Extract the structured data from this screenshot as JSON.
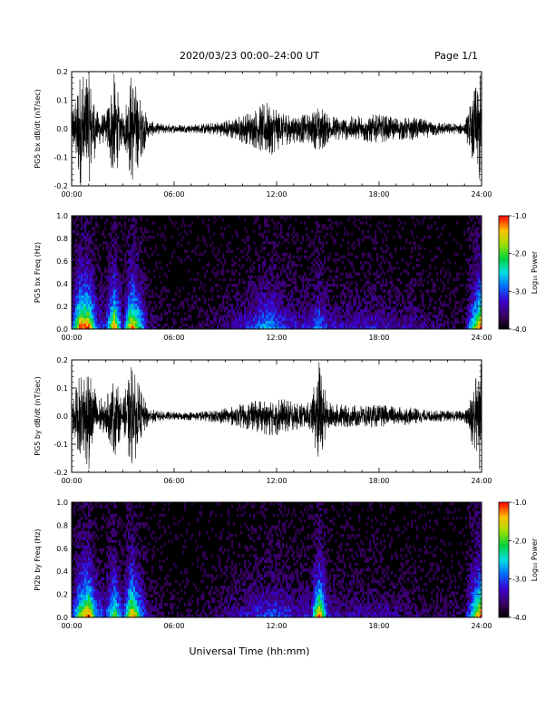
{
  "header": {
    "title": "2020/03/23  00:00–24:00 UT",
    "page_label": "Page 1/1"
  },
  "x_axis": {
    "label": "Universal Time (hh:mm)",
    "ticks": [
      "00:00",
      "06:00",
      "12:00",
      "18:00",
      "24:00"
    ],
    "range_hours": [
      0,
      24
    ]
  },
  "colorbar": {
    "label": "Log₁₀ Power",
    "ticks": [
      "-1.0",
      "-2.0",
      "-3.0",
      "-4.0"
    ],
    "range": [
      -4.0,
      -1.0
    ]
  },
  "chart_data": [
    {
      "type": "line",
      "ylabel": "PG5 bx dB/dt (nT/sec)",
      "ylim": [
        -0.2,
        0.2
      ],
      "yticks": [
        "0.2",
        "0.1",
        "0.0",
        "-0.1",
        "-0.2"
      ],
      "x_hours": [
        0,
        0.5,
        1,
        1.5,
        2,
        2.5,
        3,
        3.5,
        4,
        4.5,
        5,
        6,
        7,
        8,
        9,
        9.5,
        10,
        10.5,
        11,
        11.5,
        12,
        12.5,
        13,
        14,
        14.5,
        15,
        16,
        17,
        18,
        19,
        20,
        21,
        22,
        23,
        23.9
      ],
      "envelope": [
        0.06,
        0.2,
        0.2,
        0.06,
        0.05,
        0.2,
        0.04,
        0.2,
        0.12,
        0.03,
        0.02,
        0.015,
        0.015,
        0.02,
        0.03,
        0.04,
        0.05,
        0.06,
        0.08,
        0.1,
        0.08,
        0.06,
        0.05,
        0.05,
        0.09,
        0.05,
        0.04,
        0.05,
        0.05,
        0.04,
        0.04,
        0.03,
        0.02,
        0.02,
        0.2
      ],
      "color": "#000000"
    },
    {
      "type": "heatmap",
      "ylabel": "PG5 bx Freq (Hz)",
      "ylim": [
        0.0,
        1.0
      ],
      "yticks": [
        "1.0",
        "0.8",
        "0.6",
        "0.4",
        "0.2",
        "0.0"
      ],
      "colormap": "rainbow",
      "z_range": [
        -4.0,
        -1.0
      ]
    },
    {
      "type": "line",
      "ylabel": "PG5 by dB/dt (nT/sec)",
      "ylim": [
        -0.2,
        0.2
      ],
      "yticks": [
        "0.2",
        "0.1",
        "0.0",
        "-0.1",
        "-0.2"
      ],
      "x_hours": [
        0,
        0.5,
        1,
        1.5,
        2,
        2.5,
        3,
        3.5,
        4,
        4.5,
        5,
        6,
        7,
        8,
        9,
        9.5,
        10,
        10.5,
        11,
        11.5,
        12,
        12.5,
        13,
        14,
        14.5,
        15,
        16,
        17,
        18,
        19,
        20,
        21,
        22,
        23,
        23.9
      ],
      "envelope": [
        0.05,
        0.15,
        0.2,
        0.07,
        0.06,
        0.15,
        0.05,
        0.2,
        0.1,
        0.03,
        0.02,
        0.015,
        0.015,
        0.02,
        0.03,
        0.035,
        0.045,
        0.05,
        0.06,
        0.07,
        0.07,
        0.06,
        0.05,
        0.05,
        0.2,
        0.05,
        0.04,
        0.04,
        0.04,
        0.035,
        0.03,
        0.02,
        0.02,
        0.02,
        0.2
      ],
      "color": "#000000"
    },
    {
      "type": "heatmap",
      "ylabel": "PI2b by Freq (Hz)",
      "ylim": [
        0.0,
        1.0
      ],
      "yticks": [
        "1.0",
        "0.8",
        "0.6",
        "0.4",
        "0.2",
        "0.0"
      ],
      "colormap": "rainbow",
      "z_range": [
        -4.0,
        -1.0
      ]
    }
  ]
}
